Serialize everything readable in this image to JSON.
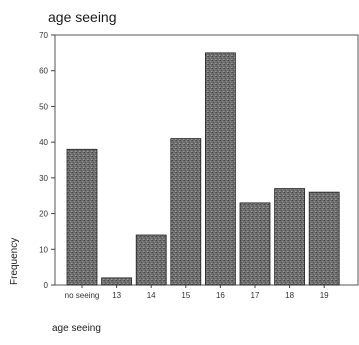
{
  "chart_data": {
    "type": "bar",
    "title": "age seeing",
    "xlabel": "age seeing",
    "ylabel": "Frequency",
    "categories": [
      "no seeing",
      "13",
      "14",
      "15",
      "16",
      "17",
      "18",
      "19"
    ],
    "values": [
      38,
      2,
      14,
      41,
      65,
      23,
      27,
      26
    ],
    "ylim": [
      0,
      70
    ],
    "yticks": [
      0,
      10,
      20,
      30,
      40,
      50,
      60,
      70
    ],
    "grid": false,
    "bar_color": "#6e6e6e"
  }
}
